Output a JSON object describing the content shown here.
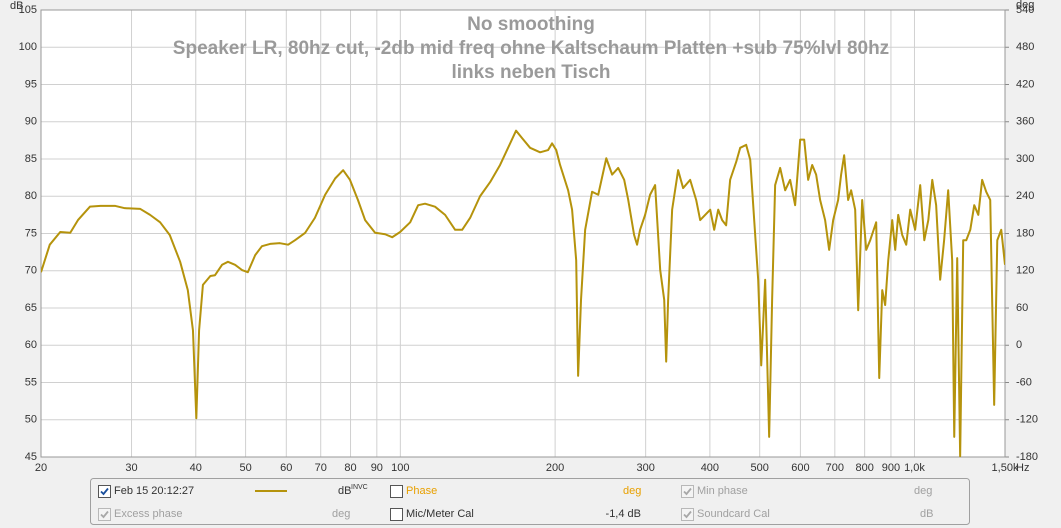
{
  "chart_data": {
    "type": "line",
    "title": "No smoothing",
    "subtitle": [
      "Speaker LR, 80hz cut, -2db mid freq ohne Kaltschaum Platten +sub 75%lvl 80hz",
      "links neben Tisch"
    ],
    "ylabel": "dB",
    "y2label": "deg",
    "x_unit": "Hz",
    "log_x": true,
    "grid": true,
    "xlim": [
      20,
      1500
    ],
    "xticks": [
      20,
      30,
      40,
      50,
      60,
      70,
      80,
      90,
      100,
      200,
      300,
      400,
      500,
      600,
      700,
      800,
      900,
      {
        "value": 1000,
        "label": "1,0k"
      },
      {
        "value": 1500,
        "label": "1,50k"
      }
    ],
    "ylim": [
      45,
      105
    ],
    "yticks": [
      45,
      50,
      55,
      60,
      65,
      70,
      75,
      80,
      85,
      90,
      95,
      100,
      105
    ],
    "y2lim": [
      -180,
      540
    ],
    "y2ticks": [
      -180,
      -120,
      -60,
      0,
      60,
      120,
      180,
      240,
      300,
      360,
      420,
      480,
      540
    ],
    "x": [
      20,
      20.8,
      21.8,
      22.8,
      23.6,
      24.9,
      26.1,
      27.9,
      29.1,
      31.2,
      32.6,
      34.1,
      35.6,
      37.3,
      38.6,
      39.5,
      40.1,
      40.6,
      41.3,
      42.7,
      43.6,
      45,
      46.2,
      47.7,
      49.2,
      50.5,
      52.2,
      53.8,
      55.8,
      58.3,
      60.5,
      62.4,
      65.3,
      68.2,
      71.4,
      74.7,
      77.4,
      79.8,
      82.7,
      85.4,
      89.3,
      93.4,
      96.4,
      99.9,
      104.5,
      108.3,
      111.7,
      116.8,
      122.2,
      127.8,
      131.9,
      136.7,
      142.9,
      149.5,
      156.3,
      162,
      167.9,
      172.5,
      178.8,
      187,
      193.8,
      197.3,
      201,
      204.5,
      212,
      215.8,
      219.8,
      221.7,
      224.6,
      228.8,
      236,
      242.6,
      251.5,
      258.2,
      265.3,
      272.5,
      277.5,
      284.9,
      288.7,
      292.6,
      299.3,
      306,
      313,
      320.2,
      326,
      328.9,
      331.8,
      337.8,
      347,
      354.8,
      366.2,
      376.2,
      383,
      391.6,
      400.6,
      407.8,
      415.2,
      422.6,
      430.2,
      438,
      450,
      458.2,
      470.6,
      479.2,
      487.8,
      496.6,
      503.4,
      512.4,
      521.6,
      528.6,
      535.8,
      548,
      560.4,
      573,
      586,
      599.4,
      610.2,
      621.2,
      632.5,
      643.8,
      655.4,
      670.2,
      682.4,
      694.8,
      710.4,
      720,
      729.8,
      743,
      753,
      766.8,
      777.2,
      791.2,
      805.6,
      820.2,
      842.4,
      854,
      865.6,
      877,
      889.2,
      905.2,
      917.4,
      929.8,
      946.6,
      963.8,
      981.2,
      1003,
      1026,
      1045,
      1064,
      1083,
      1102,
      1122,
      1142,
      1163,
      1184,
      1195,
      1211,
      1227,
      1244,
      1261,
      1284,
      1307,
      1331,
      1354,
      1379,
      1404,
      1429,
      1449,
      1475,
      1500
    ],
    "series": [
      {
        "name": "Feb 15 20:12:27",
        "color": "#b5930c",
        "values": [
          69.8,
          73.5,
          75.2,
          75.1,
          76.8,
          78.6,
          78.7,
          78.7,
          78.4,
          78.3,
          77.5,
          76.5,
          74.8,
          71.2,
          67.4,
          62.0,
          50.2,
          62.0,
          68.1,
          69.3,
          69.4,
          70.8,
          71.2,
          70.8,
          70.1,
          69.8,
          72.1,
          73.3,
          73.6,
          73.7,
          73.5,
          74.1,
          75.1,
          77.1,
          80.2,
          82.4,
          83.5,
          82.2,
          79.5,
          76.8,
          75.1,
          74.9,
          74.5,
          75.2,
          76.5,
          78.8,
          79.0,
          78.6,
          77.5,
          75.5,
          75.5,
          77.1,
          80.0,
          81.9,
          84.2,
          86.5,
          88.8,
          87.8,
          86.5,
          85.9,
          86.2,
          87.1,
          86.2,
          84.2,
          80.8,
          78.2,
          71.4,
          55.9,
          66.1,
          75.5,
          80.6,
          80.2,
          85.1,
          82.9,
          83.8,
          82.2,
          79.5,
          74.8,
          73.5,
          75.5,
          77.5,
          80.2,
          81.5,
          70.1,
          66.1,
          57.8,
          66.1,
          78.2,
          83.5,
          81.1,
          82.2,
          79.5,
          76.8,
          77.5,
          78.2,
          75.5,
          78.2,
          76.8,
          76.1,
          82.2,
          84.6,
          86.5,
          86.9,
          84.9,
          76.8,
          68.8,
          57.3,
          68.8,
          47.7,
          66.1,
          81.5,
          83.8,
          80.8,
          82.2,
          78.8,
          87.6,
          87.6,
          82.2,
          84.2,
          82.9,
          79.5,
          76.8,
          72.8,
          76.8,
          79.5,
          82.9,
          85.5,
          79.5,
          80.8,
          78.2,
          64.7,
          79.5,
          72.8,
          74.1,
          76.5,
          55.6,
          67.4,
          65.4,
          71.4,
          76.8,
          72.8,
          77.5,
          74.8,
          73.5,
          78.2,
          75.5,
          81.5,
          74.1,
          76.8,
          82.2,
          78.8,
          68.8,
          74.1,
          80.8,
          71.4,
          47.7,
          71.7,
          45.1,
          74.1,
          74.1,
          75.5,
          78.8,
          77.5,
          82.2,
          80.6,
          79.5,
          52.0,
          74.1,
          75.5,
          70.8
        ]
      }
    ]
  },
  "controls": {
    "measurement": {
      "checked": true,
      "unit": "dB",
      "unit_sup": "INVC"
    },
    "phase": {
      "label": "Phase",
      "checked": false,
      "unit": "deg"
    },
    "min_phase": {
      "label": "Min phase",
      "checked": true,
      "enabled": false,
      "unit": "deg"
    },
    "excess_phase": {
      "label": "Excess phase",
      "checked": true,
      "enabled": false,
      "unit": "deg"
    },
    "mic_cal": {
      "label": "Mic/Meter Cal",
      "checked": false,
      "value": "-1,4 dB"
    },
    "soundcard_cal": {
      "label": "Soundcard Cal",
      "checked": true,
      "enabled": false,
      "unit": "dB"
    }
  }
}
